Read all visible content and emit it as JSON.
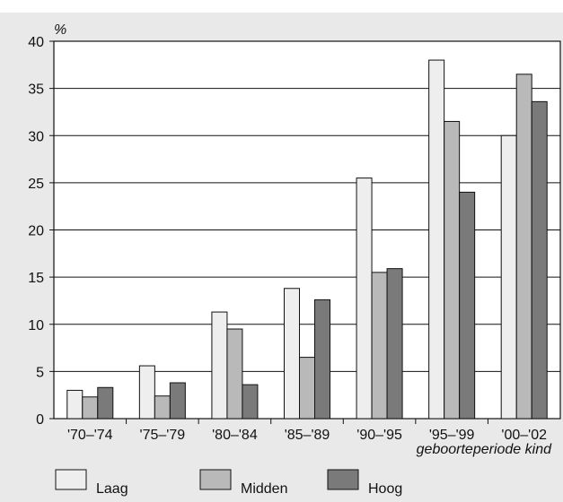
{
  "title": "",
  "chart_data": {
    "type": "bar",
    "title": "",
    "ylabel": "%",
    "xlabel": "geboorteperiode kind",
    "ylim": [
      0,
      40
    ],
    "yticks": [
      0,
      5,
      10,
      15,
      20,
      25,
      30,
      35,
      40
    ],
    "categories": [
      "'70–'74",
      "'75–'79",
      "'80–'84",
      "'85–'89",
      "'90–'95",
      "'95–'99",
      "'00–'02"
    ],
    "series": [
      {
        "name": "Laag",
        "color": "#eeeeee",
        "values": [
          3.0,
          5.6,
          11.3,
          13.8,
          25.5,
          38.0,
          30.0
        ]
      },
      {
        "name": "Midden",
        "color": "#b9b9b9",
        "values": [
          2.3,
          2.4,
          9.5,
          6.5,
          15.5,
          31.5,
          36.5
        ]
      },
      {
        "name": "Hoog",
        "color": "#7a7a7a",
        "values": [
          3.3,
          3.8,
          3.6,
          12.6,
          15.9,
          24.0,
          33.6
        ]
      }
    ],
    "grid": true,
    "legend": "bottom",
    "bar_stroke": "#111111"
  }
}
